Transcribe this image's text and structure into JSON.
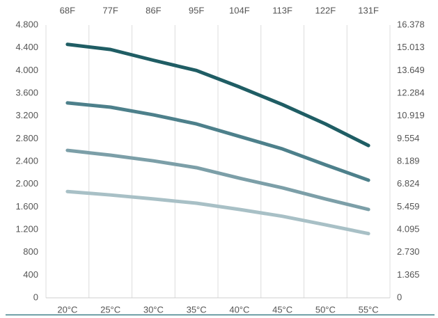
{
  "chart_data": {
    "type": "line",
    "categories": [
      "20°C",
      "25°C",
      "30°C",
      "35°C",
      "40°C",
      "45°C",
      "50°C",
      "55°C"
    ],
    "top_categories": [
      "68F",
      "77F",
      "86F",
      "95F",
      "104F",
      "113F",
      "122F",
      "131F"
    ],
    "series": [
      {
        "color": "#1f5d64",
        "values": [
          4460,
          4370,
          4180,
          4000,
          3710,
          3400,
          3060,
          2680
        ]
      },
      {
        "color": "#4d808b",
        "values": [
          3430,
          3355,
          3220,
          3060,
          2840,
          2620,
          2340,
          2070
        ]
      },
      {
        "color": "#7c9fa8",
        "values": [
          2595,
          2510,
          2410,
          2290,
          2105,
          1935,
          1740,
          1555
        ]
      },
      {
        "color": "#a8c0c6",
        "values": [
          1870,
          1810,
          1740,
          1665,
          1555,
          1435,
          1285,
          1130
        ]
      }
    ],
    "ylim": [
      0,
      4800
    ],
    "yticks": [
      0,
      400,
      800,
      {
        "value": 1200,
        "label": "1.200"
      },
      {
        "value": 1600,
        "label": "1.600"
      },
      {
        "value": 2000,
        "label": "2.000"
      },
      {
        "value": 2400,
        "label": "2.400"
      },
      {
        "value": 2800,
        "label": "2.800"
      },
      {
        "value": 3200,
        "label": "3.200"
      },
      {
        "value": 3600,
        "label": "3.600"
      },
      {
        "value": 4000,
        "label": "4.000"
      },
      {
        "value": 4400,
        "label": "4.400"
      },
      {
        "value": 4800,
        "label": "4.800"
      }
    ],
    "y2lim": [
      0,
      16.378
    ],
    "y2ticks": [
      0,
      1.365,
      {
        "value": 2.73,
        "label": "2.730"
      },
      4.095,
      5.459,
      6.824,
      8.189,
      9.554,
      10.919,
      12.284,
      13.649,
      15.013,
      16.378
    ],
    "grid": "x"
  }
}
